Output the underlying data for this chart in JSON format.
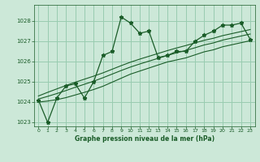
{
  "xlabel": "Graphe pression niveau de la mer (hPa)",
  "bg_color": "#cce8d8",
  "grid_color": "#99ccb0",
  "line_color": "#1a5c28",
  "xlim": [
    -0.5,
    23.5
  ],
  "ylim": [
    1022.8,
    1028.8
  ],
  "yticks": [
    1023,
    1024,
    1025,
    1026,
    1027,
    1028
  ],
  "xticks": [
    0,
    1,
    2,
    3,
    4,
    5,
    6,
    7,
    8,
    9,
    10,
    11,
    12,
    13,
    14,
    15,
    16,
    17,
    18,
    19,
    20,
    21,
    22,
    23
  ],
  "pressure_data": [
    1024.1,
    1023.0,
    1024.2,
    1024.8,
    1024.9,
    1024.2,
    1025.0,
    1026.3,
    1026.5,
    1028.2,
    1027.9,
    1027.4,
    1027.5,
    1026.2,
    1026.3,
    1026.5,
    1026.5,
    1027.0,
    1027.3,
    1027.5,
    1027.8,
    1027.8,
    1027.9,
    1027.1
  ],
  "smooth_line1": [
    1024.0,
    1024.05,
    1024.12,
    1024.22,
    1024.35,
    1024.48,
    1024.62,
    1024.78,
    1024.98,
    1025.18,
    1025.38,
    1025.53,
    1025.68,
    1025.83,
    1025.98,
    1026.08,
    1026.18,
    1026.33,
    1026.48,
    1026.58,
    1026.73,
    1026.83,
    1026.93,
    1027.03
  ],
  "smooth_line2": [
    1024.15,
    1024.28,
    1024.42,
    1024.57,
    1024.73,
    1024.88,
    1025.03,
    1025.2,
    1025.38,
    1025.56,
    1025.73,
    1025.88,
    1026.02,
    1026.16,
    1026.3,
    1026.43,
    1026.55,
    1026.68,
    1026.82,
    1026.92,
    1027.06,
    1027.16,
    1027.26,
    1027.36
  ],
  "smooth_line3": [
    1024.3,
    1024.48,
    1024.65,
    1024.82,
    1024.98,
    1025.13,
    1025.28,
    1025.44,
    1025.62,
    1025.8,
    1025.97,
    1026.12,
    1026.26,
    1026.4,
    1026.54,
    1026.67,
    1026.79,
    1026.92,
    1027.05,
    1027.15,
    1027.28,
    1027.38,
    1027.48,
    1027.58
  ]
}
